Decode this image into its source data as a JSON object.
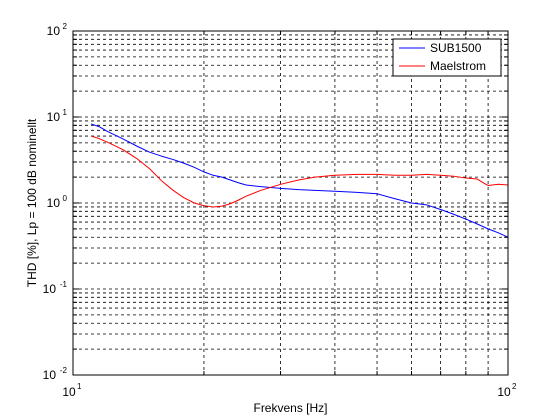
{
  "chart_data": {
    "type": "line",
    "title": "",
    "xlabel": "Frekvens [Hz]",
    "ylabel": "THD [%], Lp = 100 dB nominellt",
    "xscale": "log",
    "yscale": "log",
    "xlim": [
      10,
      100
    ],
    "ylim": [
      0.01,
      100
    ],
    "grid": true,
    "legend_position": "top-right",
    "x_ticks": [
      {
        "base": "10",
        "exp": "1",
        "value": 10
      },
      {
        "base": "10",
        "exp": "2",
        "value": 100
      }
    ],
    "y_ticks": [
      {
        "base": "10",
        "exp": "-2",
        "value": 0.01
      },
      {
        "base": "10",
        "exp": "-1",
        "value": 0.1
      },
      {
        "base": "10",
        "exp": "0",
        "value": 1
      },
      {
        "base": "10",
        "exp": "1",
        "value": 10
      },
      {
        "base": "10",
        "exp": "2",
        "value": 100
      }
    ],
    "series": [
      {
        "name": "SUB1500",
        "color": "#0000ff",
        "x": [
          11,
          11.5,
          12,
          13,
          14,
          15,
          16,
          17,
          18,
          19,
          20,
          21,
          22,
          23,
          24,
          25,
          27,
          30,
          33,
          36,
          40,
          45,
          50,
          55,
          60,
          65,
          70,
          75,
          80,
          85,
          90,
          95,
          100
        ],
        "y": [
          8.3,
          7.7,
          6.8,
          5.6,
          4.6,
          3.9,
          3.5,
          3.2,
          2.9,
          2.6,
          2.3,
          2.1,
          2.0,
          1.85,
          1.72,
          1.62,
          1.55,
          1.48,
          1.43,
          1.4,
          1.37,
          1.33,
          1.28,
          1.12,
          1.0,
          0.95,
          0.84,
          0.74,
          0.65,
          0.57,
          0.5,
          0.45,
          0.4
        ]
      },
      {
        "name": "Maelstrom",
        "color": "#ff0000",
        "x": [
          11,
          11.5,
          12,
          13,
          14,
          15,
          16,
          17,
          18,
          19,
          20,
          21,
          22,
          23,
          24,
          25,
          27,
          30,
          33,
          36,
          40,
          45,
          50,
          55,
          60,
          65,
          70,
          75,
          80,
          85,
          88,
          90,
          95,
          100
        ],
        "y": [
          6.0,
          5.6,
          5.1,
          4.2,
          3.3,
          2.5,
          1.8,
          1.4,
          1.15,
          1.0,
          0.93,
          0.9,
          0.92,
          0.98,
          1.08,
          1.2,
          1.4,
          1.65,
          1.85,
          2.0,
          2.1,
          2.15,
          2.15,
          2.1,
          2.1,
          2.15,
          2.1,
          2.05,
          1.95,
          1.9,
          1.7,
          1.6,
          1.65,
          1.62
        ]
      }
    ]
  }
}
